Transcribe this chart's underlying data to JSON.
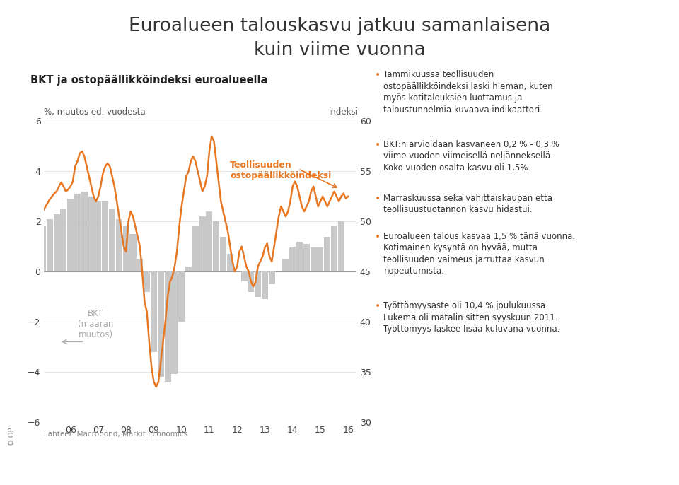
{
  "title_line1": "Euroalueen talouskasvu jatkuu samanlaisena",
  "title_line2": "kuin viime vuonna",
  "subtitle": "BKT ja ostopäällikköindeksi euroalueella",
  "ylabel_left": "%, muutos ed. vuodesta",
  "ylabel_right": "indeksi",
  "ylim_left": [
    -6,
    6
  ],
  "ylim_right": [
    30,
    60
  ],
  "xlabel_source": "Lähteet: Macrobond, Markit Economics",
  "orange_color": "#E87722",
  "bar_color": "#C8C8C8",
  "background_color": "#FFFFFF",
  "x_ticks": [
    "06",
    "07",
    "08",
    "09",
    "10",
    "11",
    "12",
    "13",
    "14",
    "15",
    "16"
  ],
  "bullet_points": [
    "Tammikuussa teollisuuden\nostopäällikköindeksi laski hieman, kuten\nmyös kotitalouksien luottamus ja\ntaloustunnelmia kuvaava indikaattori.",
    "BKT:n arvioidaan kasvaneen 0,2 % - 0,3 %\nviime vuoden viimeisellä neljänneksellä.\nKoko vuoden osalta kasvu oli 1,5%.",
    "Marraskuussa sekä vähittäiskaupan että\nteollisuustuotannon kasvu hidastui.",
    "Euroalueen talous kasvaa 1,5 % tänä vuonna.\nKotimainen kysyntä on hyvää, mutta\nteollisuuden vaimeus jarruttaa kasvun\nnopeutumista.",
    "Työttömyysaste oli 10,4 % joulukuussa.\nLukema oli matalin sitten syyskuun 2011.\nTyöttömyys laskee lisää kuluvana vuonna."
  ],
  "bkt_label": "BKT\n(määrän\nmuutos)",
  "pmi_label": "Teollisuuden\nostopäällikköindeksi",
  "bkt_data_x": [
    2005.0,
    2005.25,
    2005.5,
    2005.75,
    2006.0,
    2006.25,
    2006.5,
    2006.75,
    2007.0,
    2007.25,
    2007.5,
    2007.75,
    2008.0,
    2008.25,
    2008.5,
    2008.75,
    2009.0,
    2009.25,
    2009.5,
    2009.75,
    2010.0,
    2010.25,
    2010.5,
    2010.75,
    2011.0,
    2011.25,
    2011.5,
    2011.75,
    2012.0,
    2012.25,
    2012.5,
    2012.75,
    2013.0,
    2013.25,
    2013.5,
    2013.75,
    2014.0,
    2014.25,
    2014.5,
    2014.75,
    2015.0,
    2015.25,
    2015.5,
    2015.75
  ],
  "bkt_data_y": [
    1.8,
    2.1,
    2.3,
    2.5,
    2.9,
    3.1,
    3.2,
    3.0,
    2.8,
    2.8,
    2.5,
    2.1,
    1.8,
    1.5,
    0.5,
    -0.8,
    -3.2,
    -4.2,
    -4.4,
    -4.1,
    -2.0,
    0.2,
    1.8,
    2.2,
    2.4,
    2.0,
    1.4,
    0.7,
    0.0,
    -0.4,
    -0.8,
    -1.0,
    -1.1,
    -0.5,
    0.0,
    0.5,
    1.0,
    1.2,
    1.1,
    1.0,
    1.0,
    1.4,
    1.8,
    2.0
  ],
  "pmi_data_x": [
    2005.0,
    2005.083,
    2005.167,
    2005.25,
    2005.333,
    2005.417,
    2005.5,
    2005.583,
    2005.667,
    2005.75,
    2005.833,
    2005.917,
    2006.0,
    2006.083,
    2006.167,
    2006.25,
    2006.333,
    2006.417,
    2006.5,
    2006.583,
    2006.667,
    2006.75,
    2006.833,
    2006.917,
    2007.0,
    2007.083,
    2007.167,
    2007.25,
    2007.333,
    2007.417,
    2007.5,
    2007.583,
    2007.667,
    2007.75,
    2007.833,
    2007.917,
    2008.0,
    2008.083,
    2008.167,
    2008.25,
    2008.333,
    2008.417,
    2008.5,
    2008.583,
    2008.667,
    2008.75,
    2008.833,
    2008.917,
    2009.0,
    2009.083,
    2009.167,
    2009.25,
    2009.333,
    2009.417,
    2009.5,
    2009.583,
    2009.667,
    2009.75,
    2009.833,
    2009.917,
    2010.0,
    2010.083,
    2010.167,
    2010.25,
    2010.333,
    2010.417,
    2010.5,
    2010.583,
    2010.667,
    2010.75,
    2010.833,
    2010.917,
    2011.0,
    2011.083,
    2011.167,
    2011.25,
    2011.333,
    2011.417,
    2011.5,
    2011.583,
    2011.667,
    2011.75,
    2011.833,
    2011.917,
    2012.0,
    2012.083,
    2012.167,
    2012.25,
    2012.333,
    2012.417,
    2012.5,
    2012.583,
    2012.667,
    2012.75,
    2012.833,
    2012.917,
    2013.0,
    2013.083,
    2013.167,
    2013.25,
    2013.333,
    2013.417,
    2013.5,
    2013.583,
    2013.667,
    2013.75,
    2013.833,
    2013.917,
    2014.0,
    2014.083,
    2014.167,
    2014.25,
    2014.333,
    2014.417,
    2014.5,
    2014.583,
    2014.667,
    2014.75,
    2014.833,
    2014.917,
    2015.0,
    2015.083,
    2015.167,
    2015.25,
    2015.333,
    2015.417,
    2015.5,
    2015.583,
    2015.667,
    2015.75,
    2015.833,
    2015.917,
    2016.0
  ],
  "pmi_data_y": [
    51.0,
    51.4,
    51.8,
    52.2,
    52.5,
    52.8,
    53.0,
    53.5,
    53.9,
    53.5,
    53.0,
    53.2,
    53.5,
    54.0,
    55.5,
    56.0,
    56.8,
    57.0,
    56.5,
    55.5,
    54.5,
    53.5,
    52.5,
    52.0,
    52.5,
    53.5,
    54.8,
    55.5,
    55.8,
    55.5,
    54.5,
    53.5,
    52.0,
    50.5,
    49.0,
    47.5,
    47.0,
    50.0,
    51.0,
    50.5,
    49.5,
    48.5,
    47.5,
    45.0,
    42.0,
    41.0,
    38.0,
    35.5,
    34.0,
    33.5,
    34.0,
    36.0,
    38.0,
    40.0,
    42.5,
    44.0,
    44.5,
    45.5,
    47.0,
    49.5,
    51.5,
    53.0,
    54.5,
    55.0,
    56.0,
    56.5,
    56.0,
    55.0,
    54.0,
    53.0,
    53.5,
    54.5,
    57.0,
    58.5,
    58.0,
    56.0,
    54.0,
    52.0,
    51.0,
    50.0,
    49.0,
    47.5,
    46.0,
    45.0,
    45.5,
    47.0,
    47.5,
    46.5,
    45.5,
    45.0,
    44.0,
    43.5,
    44.0,
    45.5,
    46.0,
    46.5,
    47.4,
    47.8,
    46.5,
    46.0,
    47.5,
    49.0,
    50.5,
    51.5,
    51.0,
    50.5,
    51.0,
    52.0,
    53.5,
    54.0,
    53.5,
    52.5,
    51.5,
    51.0,
    51.5,
    52.0,
    53.0,
    53.5,
    52.5,
    51.5,
    52.0,
    52.5,
    52.0,
    51.5,
    52.0,
    52.5,
    53.0,
    52.5,
    52.0,
    52.5,
    52.8,
    52.3,
    52.5
  ]
}
